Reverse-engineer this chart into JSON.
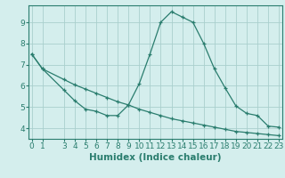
{
  "line1_x": [
    0,
    1,
    3,
    4,
    5,
    6,
    7,
    8,
    9,
    10,
    11,
    12,
    13,
    14,
    15,
    16,
    17,
    18,
    19,
    20,
    21,
    22,
    23
  ],
  "line1_y": [
    7.5,
    6.8,
    5.8,
    5.3,
    4.9,
    4.8,
    4.6,
    4.6,
    5.1,
    6.1,
    7.5,
    9.0,
    9.5,
    9.25,
    9.0,
    8.0,
    6.8,
    5.9,
    5.05,
    4.7,
    4.6,
    4.1,
    4.05
  ],
  "line2_x": [
    0,
    1,
    3,
    4,
    5,
    6,
    7,
    8,
    9,
    10,
    11,
    12,
    13,
    14,
    15,
    16,
    17,
    18,
    19,
    20,
    21,
    22,
    23
  ],
  "line2_y": [
    7.5,
    6.8,
    6.3,
    6.05,
    5.85,
    5.65,
    5.45,
    5.25,
    5.1,
    4.9,
    4.75,
    4.6,
    4.45,
    4.35,
    4.25,
    4.15,
    4.05,
    3.95,
    3.85,
    3.8,
    3.75,
    3.7,
    3.65
  ],
  "line_color": "#2a7d6e",
  "bg_color": "#d4eeed",
  "grid_color": "#aacfcd",
  "xlabel": "Humidex (Indice chaleur)",
  "xticks": [
    0,
    1,
    3,
    4,
    5,
    6,
    7,
    8,
    9,
    10,
    11,
    12,
    13,
    14,
    15,
    16,
    17,
    18,
    19,
    20,
    21,
    22,
    23
  ],
  "yticks": [
    4,
    5,
    6,
    7,
    8,
    9
  ],
  "ylim": [
    3.5,
    9.8
  ],
  "xlim": [
    -0.3,
    23.3
  ],
  "xlabel_fontsize": 7.5,
  "tick_fontsize": 6.5
}
